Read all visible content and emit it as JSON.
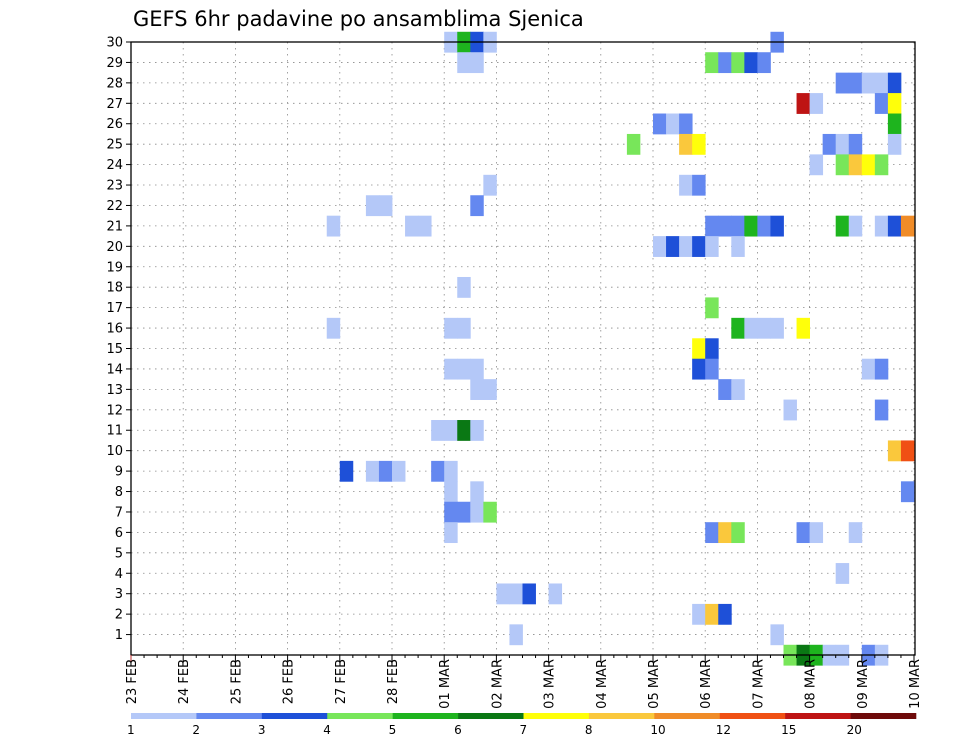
{
  "chart_data": {
    "type": "heatmap",
    "title": "GEFS 6hr padavine po ansamblima Sjenica",
    "y_ticks": [
      "1",
      "2",
      "3",
      "4",
      "5",
      "6",
      "7",
      "8",
      "9",
      "10",
      "11",
      "12",
      "13",
      "14",
      "15",
      "16",
      "17",
      "18",
      "19",
      "20",
      "21",
      "22",
      "23",
      "24",
      "25",
      "26",
      "27",
      "28",
      "29",
      "30"
    ],
    "x_ticks": [
      "23 FEB",
      "24 FEB",
      "25 FEB",
      "26 FEB",
      "27 FEB",
      "28 FEB",
      "01 MAR",
      "02 MAR",
      "03 MAR",
      "04 MAR",
      "05 MAR",
      "06 MAR",
      "07 MAR",
      "08 MAR",
      "09 MAR",
      "10 MAR"
    ],
    "ylim": [
      0,
      30
    ],
    "grid": true,
    "steps_per_day": 4,
    "legend": {
      "position": "bottom",
      "labels": [
        "1",
        "2",
        "3",
        "4",
        "5",
        "6",
        "7",
        "8",
        "10",
        "12",
        "15",
        "20"
      ],
      "colors": [
        "#b4c8f8",
        "#6488f0",
        "#1e50d8",
        "#78e65a",
        "#1eb41e",
        "#0a7814",
        "#ffff0a",
        "#fac83c",
        "#f08c28",
        "#f05014",
        "#be1414",
        "#6e0a0a"
      ]
    },
    "cells": [
      {
        "m": 30,
        "t": [
          [
            24,
            0
          ],
          [
            25,
            4
          ],
          [
            26,
            2
          ],
          [
            27,
            0
          ],
          [
            49,
            1
          ]
        ]
      },
      {
        "m": 29,
        "t": [
          [
            25,
            0
          ],
          [
            26,
            0
          ],
          [
            44,
            3
          ],
          [
            45,
            1
          ],
          [
            46,
            3
          ],
          [
            47,
            2
          ],
          [
            48,
            1
          ]
        ]
      },
      {
        "m": 28,
        "t": [
          [
            54,
            1
          ],
          [
            55,
            1
          ],
          [
            56,
            0
          ],
          [
            57,
            0
          ],
          [
            58,
            2
          ]
        ]
      },
      {
        "m": 27,
        "t": [
          [
            51,
            10
          ],
          [
            52,
            0
          ],
          [
            57,
            1
          ],
          [
            58,
            6
          ]
        ]
      },
      {
        "m": 26,
        "t": [
          [
            40,
            1
          ],
          [
            41,
            0
          ],
          [
            42,
            1
          ],
          [
            58,
            4
          ]
        ]
      },
      {
        "m": 25,
        "t": [
          [
            38,
            3
          ],
          [
            42,
            7
          ],
          [
            43,
            6
          ],
          [
            53,
            1
          ],
          [
            54,
            0
          ],
          [
            55,
            1
          ],
          [
            58,
            0
          ]
        ]
      },
      {
        "m": 24,
        "t": [
          [
            52,
            0
          ],
          [
            54,
            3
          ],
          [
            55,
            7
          ],
          [
            56,
            6
          ],
          [
            57,
            3
          ]
        ]
      },
      {
        "m": 23,
        "t": [
          [
            27,
            0
          ],
          [
            42,
            0
          ],
          [
            43,
            1
          ]
        ]
      },
      {
        "m": 22,
        "t": [
          [
            18,
            0
          ],
          [
            19,
            0
          ],
          [
            26,
            1
          ]
        ]
      },
      {
        "m": 21,
        "t": [
          [
            15,
            0
          ],
          [
            21,
            0
          ],
          [
            22,
            0
          ],
          [
            44,
            1
          ],
          [
            45,
            1
          ],
          [
            46,
            1
          ],
          [
            47,
            4
          ],
          [
            48,
            1
          ],
          [
            49,
            2
          ],
          [
            54,
            4
          ],
          [
            55,
            0
          ],
          [
            57,
            0
          ],
          [
            58,
            2
          ],
          [
            59,
            8
          ]
        ]
      },
      {
        "m": 20,
        "t": [
          [
            40,
            0
          ],
          [
            41,
            2
          ],
          [
            42,
            0
          ],
          [
            43,
            2
          ],
          [
            44,
            0
          ],
          [
            46,
            0
          ]
        ]
      },
      {
        "m": 18,
        "t": [
          [
            25,
            0
          ]
        ]
      },
      {
        "m": 17,
        "t": [
          [
            44,
            3
          ]
        ]
      },
      {
        "m": 16,
        "t": [
          [
            15,
            0
          ],
          [
            24,
            0
          ],
          [
            25,
            0
          ],
          [
            46,
            4
          ],
          [
            47,
            0
          ],
          [
            48,
            0
          ],
          [
            49,
            0
          ],
          [
            51,
            6
          ]
        ]
      },
      {
        "m": 15,
        "t": [
          [
            43,
            6
          ],
          [
            44,
            2
          ]
        ]
      },
      {
        "m": 14,
        "t": [
          [
            24,
            0
          ],
          [
            25,
            0
          ],
          [
            26,
            0
          ],
          [
            43,
            2
          ],
          [
            44,
            1
          ],
          [
            56,
            0
          ],
          [
            57,
            1
          ]
        ]
      },
      {
        "m": 13,
        "t": [
          [
            26,
            0
          ],
          [
            27,
            0
          ],
          [
            45,
            1
          ],
          [
            46,
            0
          ]
        ]
      },
      {
        "m": 12,
        "t": [
          [
            50,
            0
          ],
          [
            57,
            1
          ]
        ]
      },
      {
        "m": 11,
        "t": [
          [
            23,
            0
          ],
          [
            24,
            0
          ],
          [
            25,
            5
          ],
          [
            26,
            0
          ]
        ]
      },
      {
        "m": 10,
        "t": [
          [
            58,
            7
          ],
          [
            59,
            9
          ]
        ]
      },
      {
        "m": 9,
        "t": [
          [
            16,
            2
          ],
          [
            18,
            0
          ],
          [
            19,
            1
          ],
          [
            20,
            0
          ],
          [
            23,
            1
          ],
          [
            24,
            0
          ]
        ]
      },
      {
        "m": 8,
        "t": [
          [
            24,
            0
          ],
          [
            26,
            0
          ],
          [
            59,
            1
          ]
        ]
      },
      {
        "m": 7,
        "t": [
          [
            24,
            1
          ],
          [
            25,
            1
          ],
          [
            26,
            0
          ],
          [
            27,
            3
          ]
        ]
      },
      {
        "m": 6,
        "t": [
          [
            24,
            0
          ],
          [
            44,
            1
          ],
          [
            45,
            7
          ],
          [
            46,
            3
          ],
          [
            51,
            1
          ],
          [
            52,
            0
          ],
          [
            55,
            0
          ]
        ]
      },
      {
        "m": 4,
        "t": [
          [
            54,
            0
          ]
        ]
      },
      {
        "m": 3,
        "t": [
          [
            28,
            0
          ],
          [
            29,
            0
          ],
          [
            30,
            2
          ],
          [
            32,
            0
          ]
        ]
      },
      {
        "m": 2,
        "t": [
          [
            43,
            0
          ],
          [
            44,
            7
          ],
          [
            45,
            2
          ]
        ]
      },
      {
        "m": 1,
        "t": [
          [
            29,
            0
          ],
          [
            49,
            0
          ]
        ]
      },
      {
        "m": 0,
        "t": [
          [
            50,
            3
          ],
          [
            51,
            5
          ],
          [
            52,
            4
          ],
          [
            53,
            0
          ],
          [
            54,
            0
          ],
          [
            56,
            1
          ],
          [
            57,
            0
          ]
        ]
      }
    ]
  }
}
